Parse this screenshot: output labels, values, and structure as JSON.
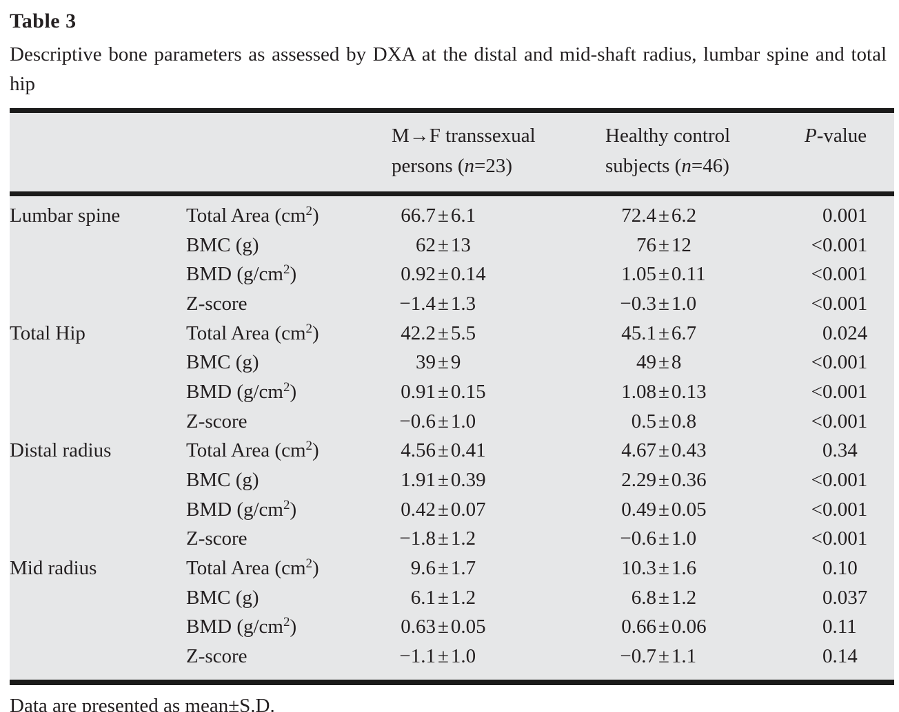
{
  "title": "Table 3",
  "caption": "Descriptive bone parameters as assessed by DXA at the distal and mid-shaft radius, lumbar spine and total hip",
  "symbols": {
    "pm": "±"
  },
  "header": {
    "group1": {
      "line1": "M→F transsexual",
      "line2_pre": "persons (",
      "n": "n",
      "line2_post": "=23)"
    },
    "group2": {
      "line1": "Healthy control",
      "line2_pre": "subjects (",
      "n": "n",
      "line2_post": "=46)"
    },
    "pcol": {
      "p": "P",
      "suffix": "-value"
    }
  },
  "rows": [
    {
      "section": "Lumbar spine",
      "param_pre": "Total Area (cm",
      "param_sup": "2",
      "param_post": ")",
      "g1": {
        "m": "66.7",
        "s": "6.1"
      },
      "g2": {
        "m": "72.4",
        "s": "6.2"
      },
      "p_lt": "",
      "p": "0.001"
    },
    {
      "section": "",
      "param_pre": "BMC (g)",
      "param_sup": "",
      "param_post": "",
      "g1": {
        "m": "62",
        "s": "13"
      },
      "g2": {
        "m": "76",
        "s": "12"
      },
      "p_lt": "<",
      "p": "0.001"
    },
    {
      "section": "",
      "param_pre": "BMD (g/cm",
      "param_sup": "2",
      "param_post": ")",
      "g1": {
        "m": "0.92",
        "s": "0.14"
      },
      "g2": {
        "m": "1.05",
        "s": "0.11"
      },
      "p_lt": "<",
      "p": "0.001"
    },
    {
      "section": "",
      "param_pre": "Z-score",
      "param_sup": "",
      "param_post": "",
      "g1": {
        "m": "−1.4",
        "s": "1.3"
      },
      "g2": {
        "m": "−0.3",
        "s": "1.0"
      },
      "p_lt": "<",
      "p": "0.001"
    },
    {
      "section": "Total Hip",
      "param_pre": "Total Area (cm",
      "param_sup": "2",
      "param_post": ")",
      "g1": {
        "m": "42.2",
        "s": "5.5"
      },
      "g2": {
        "m": "45.1",
        "s": "6.7"
      },
      "p_lt": "",
      "p": "0.024"
    },
    {
      "section": "",
      "param_pre": "BMC (g)",
      "param_sup": "",
      "param_post": "",
      "g1": {
        "m": "39",
        "s": "9"
      },
      "g2": {
        "m": "49",
        "s": "8"
      },
      "p_lt": "<",
      "p": "0.001"
    },
    {
      "section": "",
      "param_pre": "BMD (g/cm",
      "param_sup": "2",
      "param_post": ")",
      "g1": {
        "m": "0.91",
        "s": "0.15"
      },
      "g2": {
        "m": "1.08",
        "s": "0.13"
      },
      "p_lt": "<",
      "p": "0.001"
    },
    {
      "section": "",
      "param_pre": "Z-score",
      "param_sup": "",
      "param_post": "",
      "g1": {
        "m": "−0.6",
        "s": "1.0"
      },
      "g2": {
        "m": "0.5",
        "s": "0.8"
      },
      "p_lt": "<",
      "p": "0.001"
    },
    {
      "section": "Distal radius",
      "param_pre": "Total Area (cm",
      "param_sup": "2",
      "param_post": ")",
      "g1": {
        "m": "4.56",
        "s": "0.41"
      },
      "g2": {
        "m": "4.67",
        "s": "0.43"
      },
      "p_lt": "",
      "p": "0.34"
    },
    {
      "section": "",
      "param_pre": "BMC (g)",
      "param_sup": "",
      "param_post": "",
      "g1": {
        "m": "1.91",
        "s": "0.39"
      },
      "g2": {
        "m": "2.29",
        "s": "0.36"
      },
      "p_lt": "<",
      "p": "0.001"
    },
    {
      "section": "",
      "param_pre": "BMD (g/cm",
      "param_sup": "2",
      "param_post": ")",
      "g1": {
        "m": "0.42",
        "s": "0.07"
      },
      "g2": {
        "m": "0.49",
        "s": "0.05"
      },
      "p_lt": "<",
      "p": "0.001"
    },
    {
      "section": "",
      "param_pre": "Z-score",
      "param_sup": "",
      "param_post": "",
      "g1": {
        "m": "−1.8",
        "s": "1.2"
      },
      "g2": {
        "m": "−0.6",
        "s": "1.0"
      },
      "p_lt": "<",
      "p": "0.001"
    },
    {
      "section": "Mid radius",
      "param_pre": "Total Area (cm",
      "param_sup": "2",
      "param_post": ")",
      "g1": {
        "m": "9.6",
        "s": "1.7"
      },
      "g2": {
        "m": "10.3",
        "s": "1.6"
      },
      "p_lt": "",
      "p": "0.10"
    },
    {
      "section": "",
      "param_pre": "BMC (g)",
      "param_sup": "",
      "param_post": "",
      "g1": {
        "m": "6.1",
        "s": "1.2"
      },
      "g2": {
        "m": "6.8",
        "s": "1.2"
      },
      "p_lt": "",
      "p": "0.037"
    },
    {
      "section": "",
      "param_pre": "BMD (g/cm",
      "param_sup": "2",
      "param_post": ")",
      "g1": {
        "m": "0.63",
        "s": "0.05"
      },
      "g2": {
        "m": "0.66",
        "s": "0.06"
      },
      "p_lt": "",
      "p": "0.11"
    },
    {
      "section": "",
      "param_pre": "Z-score",
      "param_sup": "",
      "param_post": "",
      "g1": {
        "m": "−1.1",
        "s": "1.0"
      },
      "g2": {
        "m": "−0.7",
        "s": "1.1"
      },
      "p_lt": "",
      "p": "0.14"
    }
  ],
  "footnote": "Data are presented as mean±S.D."
}
